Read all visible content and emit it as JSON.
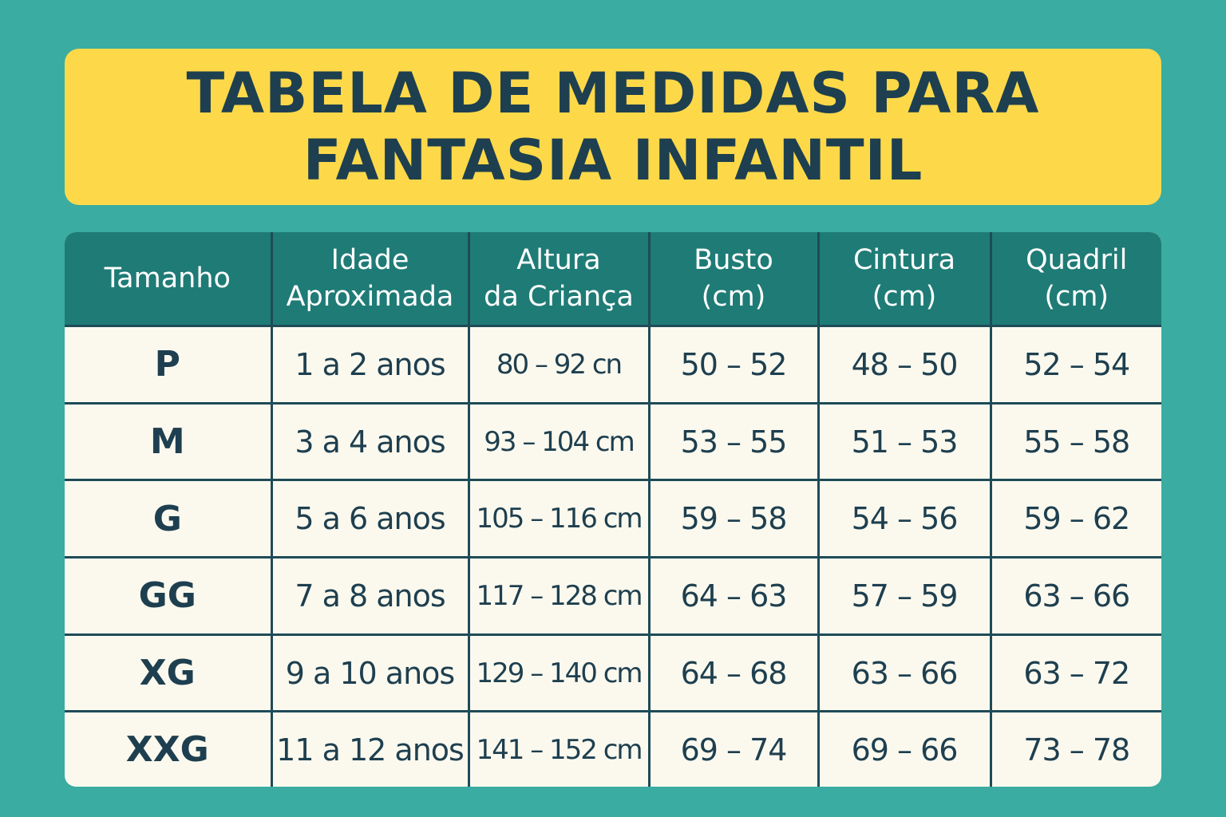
{
  "title": {
    "line1": "TABELA DE MEDIDAS PARA",
    "line2": "FANTASIA INFANTIL"
  },
  "table": {
    "headers": [
      {
        "line1": "Tamanho",
        "line2": ""
      },
      {
        "line1": "Idade",
        "line2": "Aproximada"
      },
      {
        "line1": "Altura",
        "line2": "da Criança"
      },
      {
        "line1": "Busto",
        "line2": "(cm)"
      },
      {
        "line1": "Cintura",
        "line2": "(cm)"
      },
      {
        "line1": "Quadril",
        "line2": "(cm)"
      }
    ],
    "rows": [
      {
        "tamanho": "P",
        "idade": "1 a 2 anos",
        "altura": "80 – 92 cn",
        "busto": "50 – 52",
        "cintura": "48 – 50",
        "quadril": "52 – 54"
      },
      {
        "tamanho": "M",
        "idade": "3 a 4 anos",
        "altura": "93 – 104 cm",
        "busto": "53 – 55",
        "cintura": "51 – 53",
        "quadril": "55 – 58"
      },
      {
        "tamanho": "G",
        "idade": "5 a 6 anos",
        "altura": "105 – 116 cm",
        "busto": "59 – 58",
        "cintura": "54 – 56",
        "quadril": "59 – 62"
      },
      {
        "tamanho": "GG",
        "idade": "7 a 8 anos",
        "altura": "117 – 128 cm",
        "busto": "64 – 63",
        "cintura": "57 – 59",
        "quadril": "63 – 66"
      },
      {
        "tamanho": "XG",
        "idade": "9 a 10 anos",
        "altura": "129 – 140 cm",
        "busto": "64 – 68",
        "cintura": "63 – 66",
        "quadril": "63 – 72"
      },
      {
        "tamanho": "XXG",
        "idade": "11 a 12 anos",
        "altura": "141 – 152 cm",
        "busto": "69 – 74",
        "cintura": "69 – 66",
        "quadril": "73 – 78"
      }
    ]
  },
  "colors": {
    "background": "#3aaca1",
    "banner": "#fdd94a",
    "header": "#1f7b76",
    "cell": "#fbf9ee",
    "text": "#1e3f4f"
  }
}
